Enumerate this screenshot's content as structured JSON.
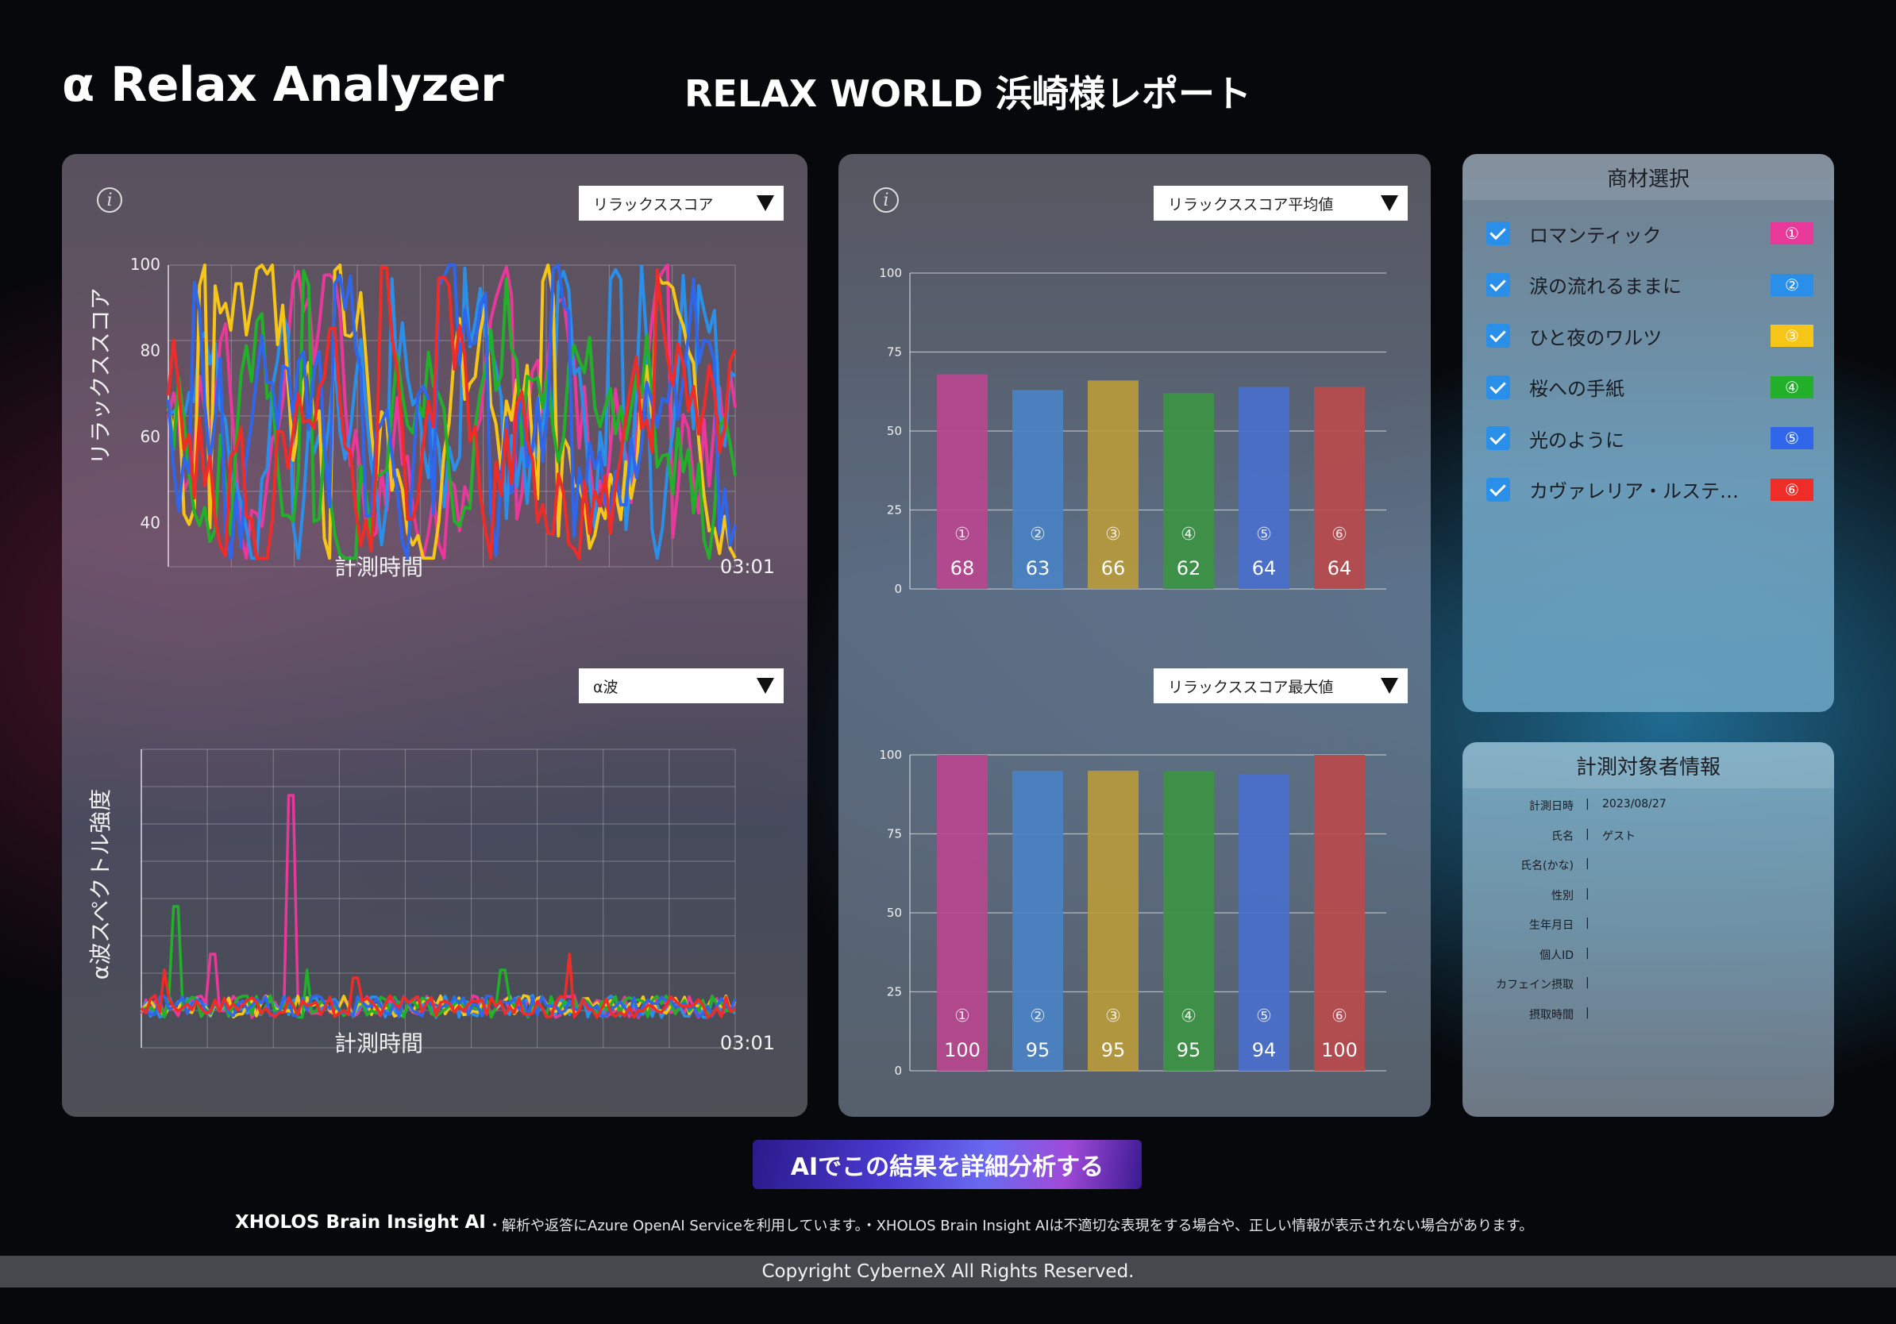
{
  "header": {
    "app_title": "α Relax Analyzer",
    "report_title": "RELAX WORLD 浜崎様レポート"
  },
  "line_panel": {
    "info_icon": "info-icon",
    "top_dropdown": "リラックススコア",
    "top_ylabel": "リラックススコア",
    "top_xlabel": "計測時間",
    "top_time": "03:01",
    "bottom_dropdown": "α波",
    "bottom_ylabel": "α波スペクトル強度",
    "bottom_xlabel": "計測時間",
    "bottom_time": "03:01"
  },
  "bar_panel": {
    "info_icon": "info-icon",
    "top_dropdown": "リラックススコア平均値",
    "bottom_dropdown": "リラックススコア最大値"
  },
  "selection": {
    "title": "商材選択",
    "items": [
      {
        "label": "ロマンティック",
        "badge": "①",
        "color": "#e8389a"
      },
      {
        "label": "涙の流れるままに",
        "badge": "②",
        "color": "#2a8fe8"
      },
      {
        "label": "ひと夜のワルツ",
        "badge": "③",
        "color": "#f5c518"
      },
      {
        "label": "桜への手紙",
        "badge": "④",
        "color": "#22b02a"
      },
      {
        "label": "光のように",
        "badge": "⑤",
        "color": "#2f66ea"
      },
      {
        "label": "カヴァレリア・ルステ…",
        "badge": "⑥",
        "color": "#ee2c28"
      }
    ]
  },
  "subject_info": {
    "title": "計測対象者情報",
    "rows": [
      {
        "key": "計測日時",
        "sep": "|",
        "value": "2023/08/27"
      },
      {
        "key": "氏名",
        "sep": "|",
        "value": "ゲスト"
      },
      {
        "key": "氏名(かな)",
        "sep": "|",
        "value": ""
      },
      {
        "key": "性別",
        "sep": "|",
        "value": ""
      },
      {
        "key": "生年月日",
        "sep": "|",
        "value": ""
      },
      {
        "key": "個人ID",
        "sep": "|",
        "value": ""
      },
      {
        "key": "カフェイン摂取",
        "sep": "|",
        "value": ""
      },
      {
        "key": "摂取時間",
        "sep": "|",
        "value": ""
      }
    ]
  },
  "ai_button": {
    "label": "AIでこの結果を詳細分析する"
  },
  "footer": {
    "brand": "XHOLOS Brain Insight AI",
    "note": "・解析や返答にAzure OpenAI Serviceを利用しています。・XHOLOS Brain Insight AIは不適切な表現をする場合や、正しい情報が表示されない場合があります。",
    "copyright": "Copyright CyberneX All Rights Reserved."
  },
  "chart_data": [
    {
      "type": "line",
      "title": "",
      "ylabel": "リラックススコア",
      "xlabel": "計測時間",
      "x_end_label": "03:01",
      "yticks": [
        40,
        60,
        80,
        100
      ],
      "ylim": [
        30,
        100
      ],
      "grid": true,
      "series_colors": [
        "#e8389a",
        "#2a8fe8",
        "#f5c518",
        "#22b02a",
        "#2f66ea",
        "#ee2c28"
      ],
      "points": 110,
      "value_range": [
        32,
        100
      ]
    },
    {
      "type": "line",
      "title": "",
      "ylabel": "α波スペクトル強度",
      "xlabel": "計測時間",
      "x_end_label": "03:01",
      "yticks": [],
      "grid": true,
      "series_colors": [
        "#e8389a",
        "#2a8fe8",
        "#f5c518",
        "#22b02a",
        "#2f66ea",
        "#ee2c28"
      ],
      "points": 130
    },
    {
      "type": "bar",
      "title": "リラックススコア平均値",
      "categories": [
        "①",
        "②",
        "③",
        "④",
        "⑤",
        "⑥"
      ],
      "values": [
        68,
        63,
        66,
        62,
        64,
        64
      ],
      "colors": [
        "#b7478e",
        "#4a82c4",
        "#b89a3c",
        "#3c9444",
        "#4a6fcc",
        "#b84a4c"
      ],
      "yticks": [
        0,
        25,
        50,
        75,
        100
      ],
      "ylim": [
        0,
        100
      ],
      "grid": true
    },
    {
      "type": "bar",
      "title": "リラックススコア最大値",
      "categories": [
        "①",
        "②",
        "③",
        "④",
        "⑤",
        "⑥"
      ],
      "values": [
        100,
        95,
        95,
        95,
        94,
        100
      ],
      "colors": [
        "#b7478e",
        "#4a82c4",
        "#b89a3c",
        "#3c9444",
        "#4a6fcc",
        "#b84a4c"
      ],
      "yticks": [
        0,
        25,
        50,
        75,
        100
      ],
      "ylim": [
        0,
        100
      ],
      "grid": true
    }
  ]
}
